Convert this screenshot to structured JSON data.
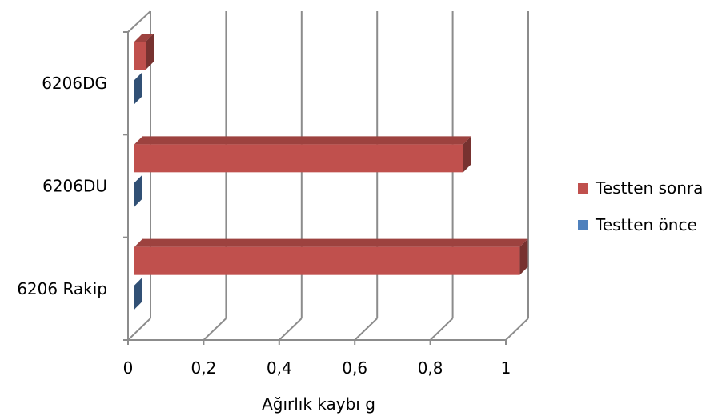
{
  "chart_data": {
    "type": "bar",
    "orientation": "horizontal",
    "style": "3d",
    "categories": [
      "6206DG",
      "6206DU",
      "6206 Rakip"
    ],
    "series": [
      {
        "name": "Testten sonra",
        "values": [
          0.03,
          0.87,
          1.02
        ],
        "color": "#c0504d"
      },
      {
        "name": "Testten önce",
        "values": [
          0.0,
          0.0,
          0.0
        ],
        "color": "#4f81bd"
      }
    ],
    "xlabel": "Ağırlık kaybı g",
    "ylabel": "",
    "xlim": [
      0,
      1
    ],
    "x_ticks": [
      "0",
      "0,2",
      "0,4",
      "0,6",
      "0,8",
      "1"
    ],
    "grid": true,
    "legend": "right"
  }
}
